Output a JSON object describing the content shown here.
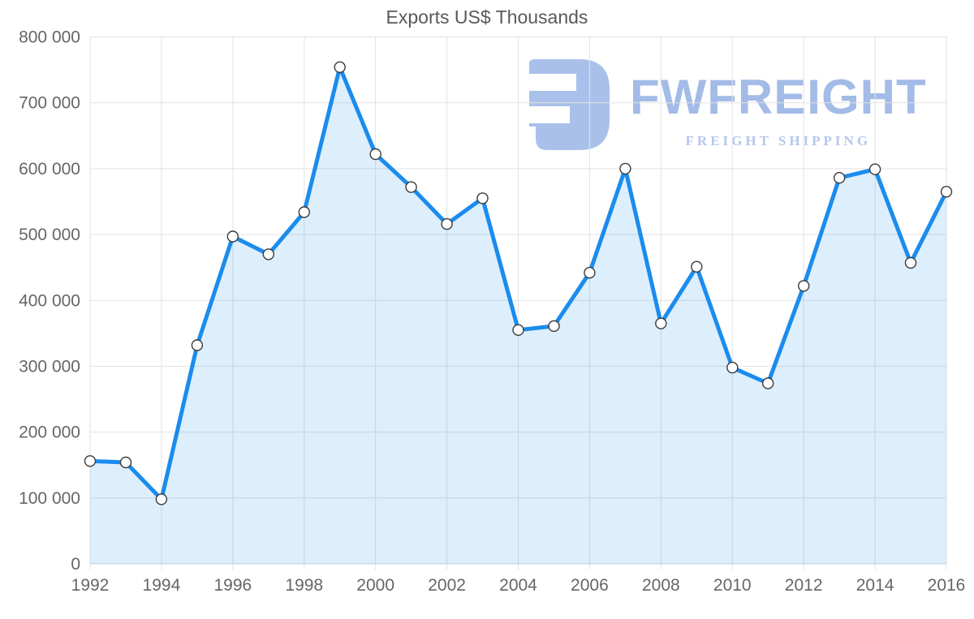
{
  "chart": {
    "colors": {
      "line": "#1b8ced",
      "fill": "rgba(27,140,237,0.15)",
      "grid": "#e2e2e2",
      "axis": "#d2d6da",
      "marker_fill": "#ffffff",
      "marker_stroke": "#3b3b3b",
      "tick_text": "#666666",
      "title_text": "#595959"
    }
  },
  "chart_data": {
    "type": "area",
    "title": "Exports US$ Thousands",
    "x": [
      1992,
      1993,
      1994,
      1995,
      1996,
      1997,
      1998,
      1999,
      2000,
      2001,
      2002,
      2003,
      2004,
      2005,
      2006,
      2007,
      2008,
      2009,
      2010,
      2011,
      2012,
      2013,
      2014,
      2015,
      2016
    ],
    "values": [
      156000,
      154000,
      98000,
      332000,
      497000,
      470000,
      534000,
      754000,
      622000,
      572000,
      516000,
      555000,
      355000,
      361000,
      442000,
      600000,
      365000,
      451000,
      298000,
      274000,
      422000,
      586000,
      599000,
      457000,
      565000
    ],
    "xlabel": "",
    "ylabel": "",
    "xlim": [
      1992,
      2016
    ],
    "ylim": [
      0,
      800000
    ],
    "y_tick_values": [
      0,
      100000,
      200000,
      300000,
      400000,
      500000,
      600000,
      700000,
      800000
    ],
    "y_tick_labels": [
      "0",
      "100 000",
      "200 000",
      "300 000",
      "400 000",
      "500 000",
      "600 000",
      "700 000",
      "800 000"
    ],
    "x_tick_values": [
      1992,
      1994,
      1996,
      1998,
      2000,
      2002,
      2004,
      2006,
      2008,
      2010,
      2012,
      2014,
      2016
    ],
    "x_tick_labels": [
      "1992",
      "1994",
      "1996",
      "1998",
      "2000",
      "2002",
      "2004",
      "2006",
      "2008",
      "2010",
      "2012",
      "2014",
      "2016"
    ],
    "grid": true,
    "legend": false,
    "marker": "circle"
  },
  "watermark": {
    "brand": "FWFREIGHT",
    "tagline": "FREIGHT SHIPPING",
    "icon": "fwfreight-logo-icon",
    "colors": {
      "icon": "#a9c1ea",
      "brand": "#a3bbe7",
      "tagline": "#b5c7ee"
    }
  }
}
